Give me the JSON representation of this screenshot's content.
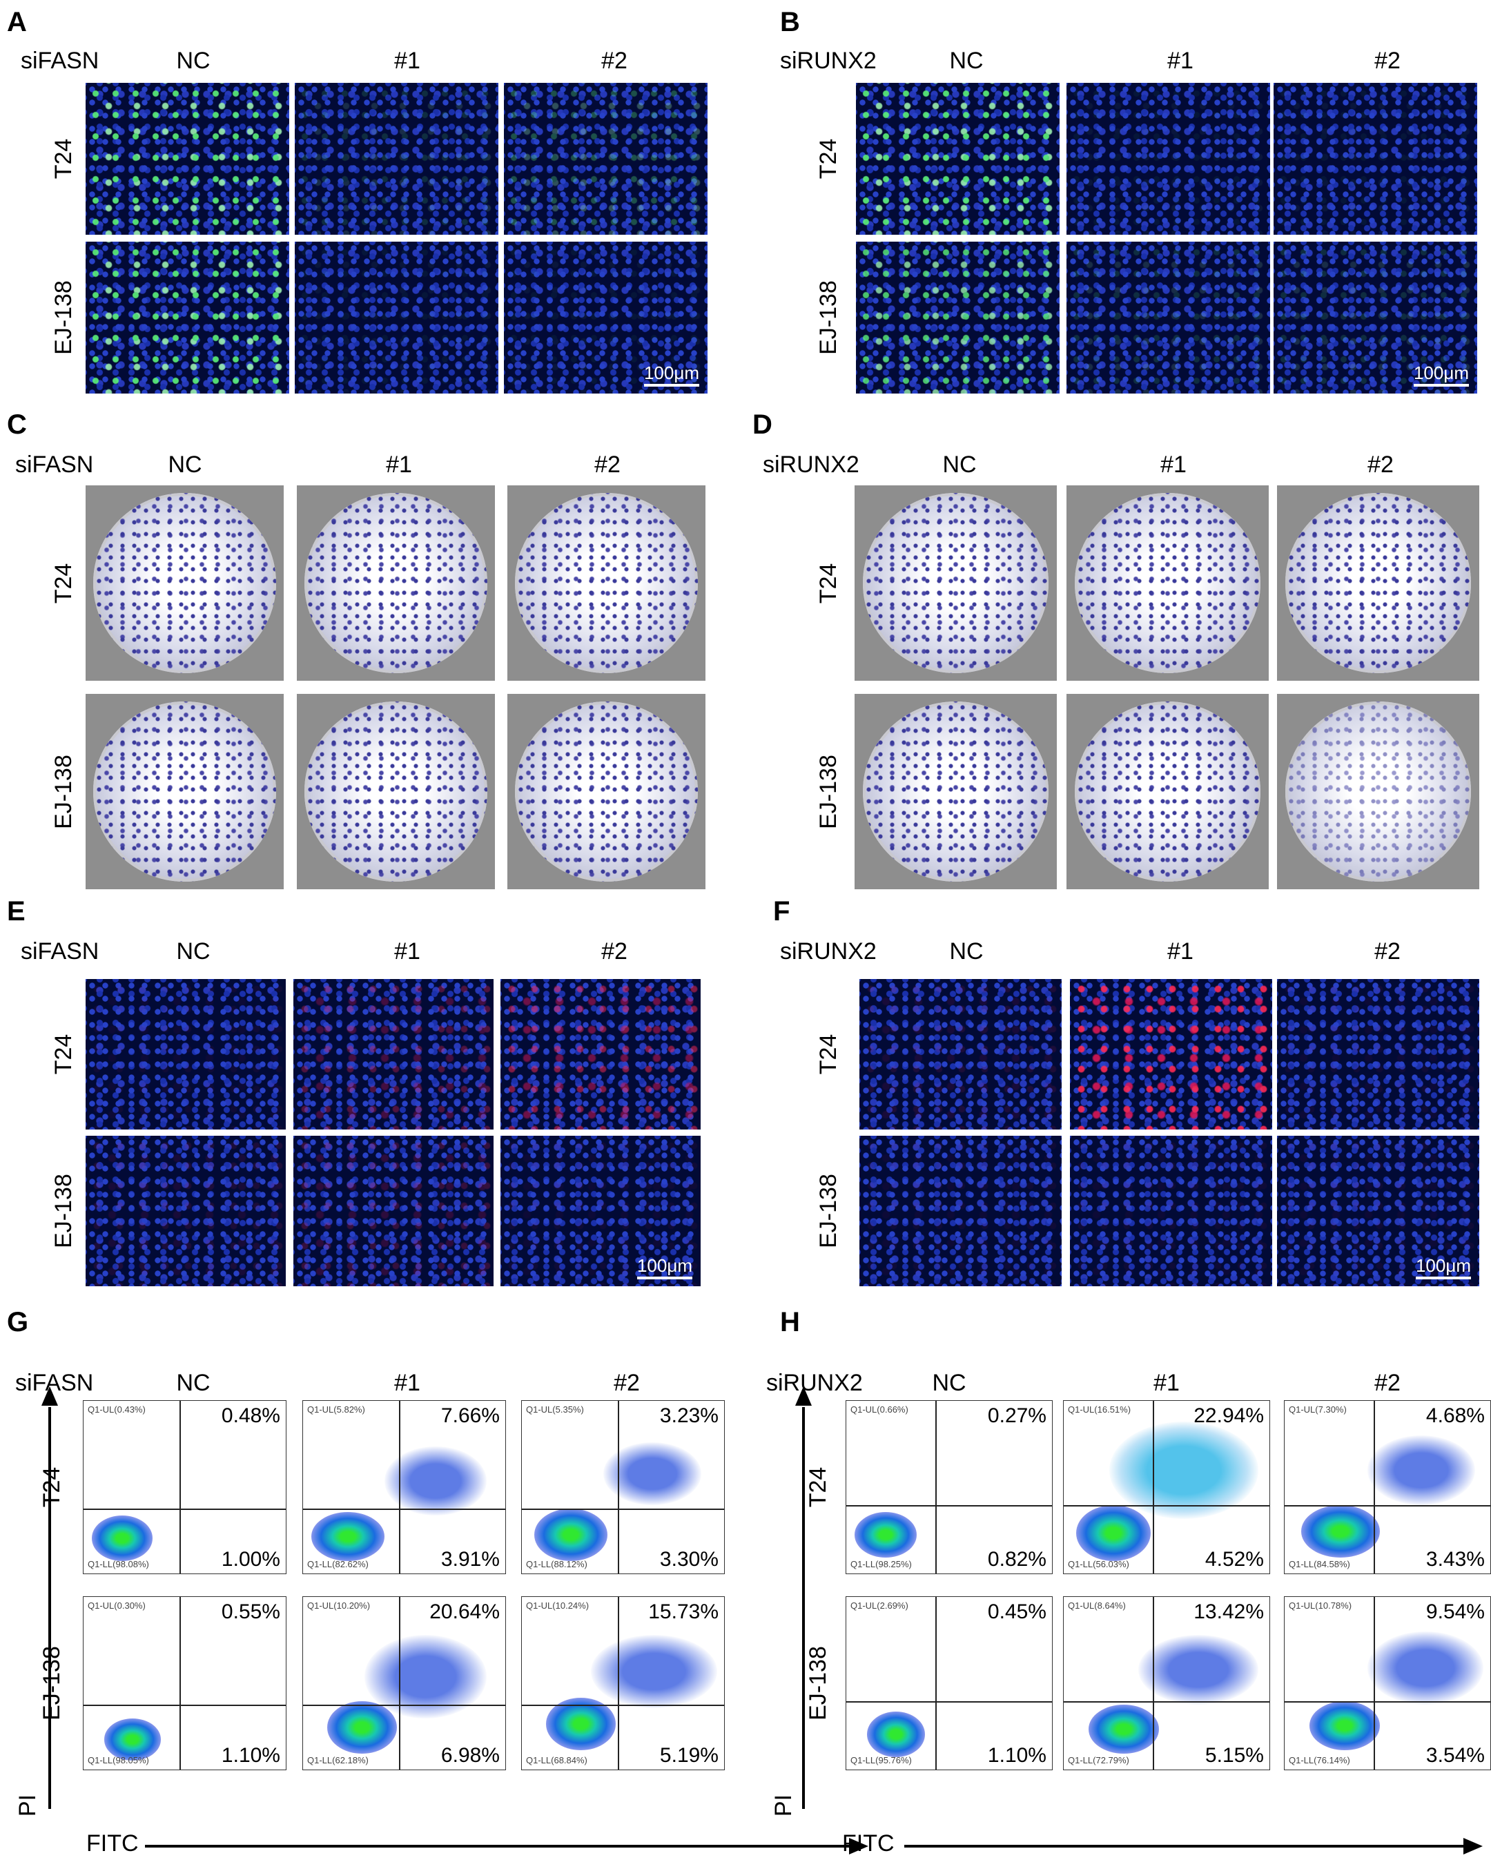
{
  "panels": {
    "A": {
      "letter": "A",
      "treatment": "siFASN",
      "columns": [
        "NC",
        "#1",
        "#2"
      ],
      "rows": [
        "T24",
        "EJ-138"
      ],
      "scalebar": "100μm"
    },
    "B": {
      "letter": "B",
      "treatment": "siRUNX2",
      "columns": [
        "NC",
        "#1",
        "#2"
      ],
      "rows": [
        "T24",
        "EJ-138"
      ],
      "scalebar": "100μm"
    },
    "C": {
      "letter": "C",
      "treatment": "siFASN",
      "columns": [
        "NC",
        "#1",
        "#2"
      ],
      "rows": [
        "T24",
        "EJ-138"
      ]
    },
    "D": {
      "letter": "D",
      "treatment": "siRUNX2",
      "columns": [
        "NC",
        "#1",
        "#2"
      ],
      "rows": [
        "T24",
        "EJ-138"
      ]
    },
    "E": {
      "letter": "E",
      "treatment": "siFASN",
      "columns": [
        "NC",
        "#1",
        "#2"
      ],
      "rows": [
        "T24",
        "EJ-138"
      ],
      "scalebar": "100μm"
    },
    "F": {
      "letter": "F",
      "treatment": "siRUNX2",
      "columns": [
        "NC",
        "#1",
        "#2"
      ],
      "rows": [
        "T24",
        "EJ-138"
      ],
      "scalebar": "100μm"
    },
    "G": {
      "letter": "G",
      "treatment": "siFASN",
      "columns": [
        "NC",
        "#1",
        "#2"
      ],
      "rows": [
        "T24",
        "EJ-138"
      ],
      "y_axis": "PI",
      "x_axis": "FITC",
      "plots": [
        [
          {
            "ul": "Q1-UL(0.43%)",
            "ll": "Q1-LL(98.08%)",
            "ur": "0.48%",
            "lr": "1.00%"
          },
          {
            "ul": "Q1-UL(5.82%)",
            "ll": "Q1-LL(82.62%)",
            "ur": "7.66%",
            "lr": "3.91%"
          },
          {
            "ul": "Q1-UL(5.35%)",
            "ll": "Q1-LL(88.12%)",
            "ur": "3.23%",
            "lr": "3.30%"
          }
        ],
        [
          {
            "ul": "Q1-UL(0.30%)",
            "ll": "Q1-LL(98.05%)",
            "ur": "0.55%",
            "lr": "1.10%"
          },
          {
            "ul": "Q1-UL(10.20%)",
            "ll": "Q1-LL(62.18%)",
            "ur": "20.64%",
            "lr": "6.98%"
          },
          {
            "ul": "Q1-UL(10.24%)",
            "ll": "Q1-LL(68.84%)",
            "ur": "15.73%",
            "lr": "5.19%"
          }
        ]
      ]
    },
    "H": {
      "letter": "H",
      "treatment": "siRUNX2",
      "columns": [
        "NC",
        "#1",
        "#2"
      ],
      "rows": [
        "T24",
        "EJ-138"
      ],
      "y_axis": "PI",
      "x_axis": "FITC",
      "plots": [
        [
          {
            "ul": "Q1-UL(0.66%)",
            "ll": "Q1-LL(98.25%)",
            "ur": "0.27%",
            "lr": "0.82%"
          },
          {
            "ul": "Q1-UL(16.51%)",
            "ll": "Q1-LL(56.03%)",
            "ur": "22.94%",
            "lr": "4.52%"
          },
          {
            "ul": "Q1-UL(7.30%)",
            "ll": "Q1-LL(84.58%)",
            "ur": "4.68%",
            "lr": "3.43%"
          }
        ],
        [
          {
            "ul": "Q1-UL(2.69%)",
            "ll": "Q1-LL(95.76%)",
            "ur": "0.45%",
            "lr": "1.10%"
          },
          {
            "ul": "Q1-UL(8.64%)",
            "ll": "Q1-LL(72.79%)",
            "ur": "13.42%",
            "lr": "5.15%"
          },
          {
            "ul": "Q1-UL(10.78%)",
            "ll": "Q1-LL(76.14%)",
            "ur": "9.54%",
            "lr": "3.54%"
          }
        ]
      ]
    }
  },
  "signal": {
    "A": [
      [
        0.9,
        0.15,
        0.3
      ],
      [
        0.9,
        0.05,
        0.05
      ]
    ],
    "B": [
      [
        0.9,
        0.05,
        0.05
      ],
      [
        0.8,
        0.15,
        0.15
      ]
    ],
    "E": [
      [
        0.05,
        0.3,
        0.5
      ],
      [
        0.1,
        0.2,
        0.05
      ]
    ],
    "F": [
      [
        0.1,
        0.9,
        0.05
      ],
      [
        0.05,
        0.05,
        0.05
      ]
    ]
  },
  "colors": {
    "nuclei": "#2c47d8",
    "edu": "#5cf27a",
    "tunel": "#ff2a55",
    "crystal_violet": "#3a3a9a"
  }
}
